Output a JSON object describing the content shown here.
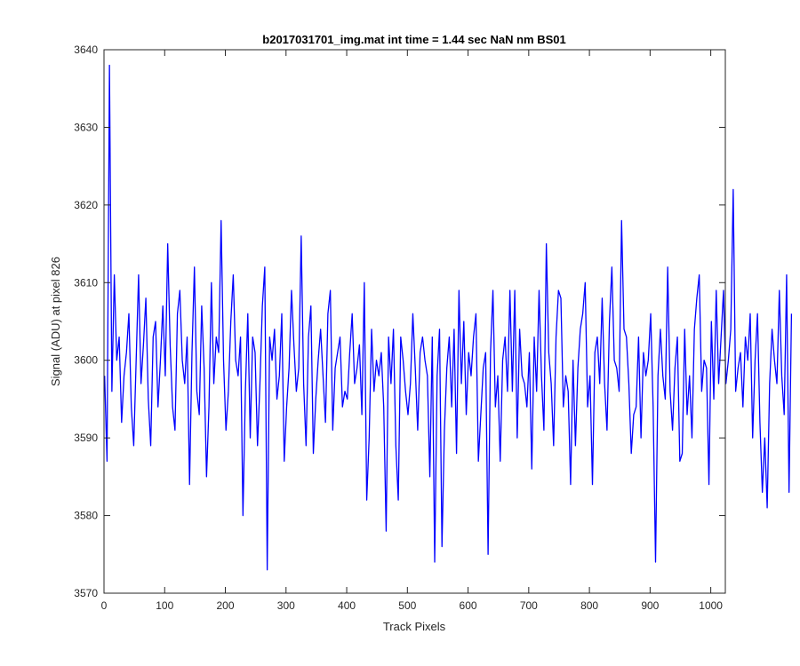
{
  "chart_data": {
    "type": "line",
    "title": "b2017031701_img.mat int time = 1.44 sec  NaN nm BS01",
    "xlabel": "Track Pixels",
    "ylabel": "Signal (ADU) at pixel 826",
    "xlim": [
      0,
      1024
    ],
    "ylim": [
      3570,
      3640
    ],
    "xticks": [
      0,
      100,
      200,
      300,
      400,
      500,
      600,
      700,
      800,
      900,
      1000
    ],
    "yticks": [
      3570,
      3580,
      3590,
      3600,
      3610,
      3620,
      3630,
      3640
    ],
    "grid": false,
    "line_color": "#0000ff",
    "series": [
      {
        "x_start": 1,
        "x_step": 4,
        "values": [
          3598,
          3587,
          3638,
          3596,
          3611,
          3600,
          3603,
          3592,
          3598,
          3601,
          3606,
          3594,
          3589,
          3600,
          3611,
          3597,
          3602,
          3608,
          3595,
          3589,
          3603,
          3605,
          3594,
          3600,
          3607,
          3598,
          3615,
          3602,
          3594,
          3591,
          3606,
          3609,
          3600,
          3597,
          3603,
          3584,
          3601,
          3612,
          3596,
          3593,
          3607,
          3599,
          3585,
          3594,
          3610,
          3597,
          3603,
          3601,
          3618,
          3600,
          3591,
          3596,
          3605,
          3611,
          3600,
          3598,
          3603,
          3580,
          3596,
          3606,
          3590,
          3603,
          3601,
          3589,
          3597,
          3607,
          3612,
          3573,
          3603,
          3600,
          3604,
          3595,
          3598,
          3606,
          3587,
          3594,
          3599,
          3609,
          3602,
          3596,
          3599,
          3616,
          3597,
          3589,
          3603,
          3607,
          3588,
          3595,
          3600,
          3604,
          3598,
          3592,
          3606,
          3609,
          3591,
          3599,
          3601,
          3603,
          3594,
          3596,
          3595,
          3601,
          3606,
          3597,
          3599,
          3602,
          3593,
          3610,
          3582,
          3590,
          3604,
          3596,
          3600,
          3598,
          3601,
          3594,
          3578,
          3603,
          3597,
          3604,
          3589,
          3582,
          3603,
          3600,
          3596,
          3593,
          3597,
          3606,
          3599,
          3591,
          3601,
          3603,
          3600,
          3598,
          3585,
          3603,
          3574,
          3598,
          3604,
          3576,
          3591,
          3599,
          3603,
          3594,
          3604,
          3588,
          3609,
          3597,
          3605,
          3593,
          3601,
          3598,
          3603,
          3606,
          3587,
          3593,
          3599,
          3601,
          3575,
          3601,
          3609,
          3594,
          3598,
          3587,
          3600,
          3603,
          3596,
          3609,
          3596,
          3609,
          3590,
          3604,
          3598,
          3597,
          3594,
          3601,
          3586,
          3603,
          3596,
          3609,
          3598,
          3591,
          3615,
          3601,
          3597,
          3589,
          3603,
          3609,
          3608,
          3594,
          3598,
          3596,
          3584,
          3600,
          3589,
          3599,
          3604,
          3606,
          3610,
          3594,
          3598,
          3584,
          3601,
          3603,
          3597,
          3608,
          3597,
          3591,
          3605,
          3612,
          3600,
          3599,
          3596,
          3618,
          3604,
          3603,
          3597,
          3588,
          3593,
          3594,
          3603,
          3590,
          3601,
          3598,
          3600,
          3606,
          3594,
          3574,
          3598,
          3604,
          3598,
          3595,
          3612,
          3596,
          3591,
          3599,
          3603,
          3587,
          3588,
          3604,
          3593,
          3598,
          3590,
          3604,
          3608,
          3611,
          3596,
          3600,
          3599,
          3584,
          3605,
          3595,
          3609,
          3597,
          3603,
          3609,
          3597,
          3600,
          3604,
          3622,
          3596,
          3599,
          3601,
          3594,
          3603,
          3600,
          3606,
          3590,
          3600,
          3606,
          3592,
          3583,
          3590,
          3581,
          3597,
          3604,
          3600,
          3597,
          3609,
          3598,
          3593,
          3611,
          3583,
          3606
        ]
      }
    ]
  }
}
